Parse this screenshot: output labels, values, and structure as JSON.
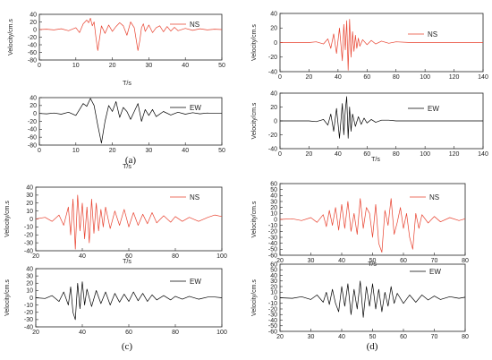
{
  "colors": {
    "ns": "#e8412e",
    "ew": "#000000",
    "axis": "#222222"
  },
  "chart_data": [
    {
      "type": "line",
      "group": "(a)",
      "caption": "(a)",
      "xlabel": "T/s",
      "ylabel": "Velocity/cm.s",
      "xlim": [
        0,
        50
      ],
      "xticks": [
        0,
        10,
        20,
        30,
        40,
        50
      ],
      "ylim": [
        -80,
        40
      ],
      "yticks": [
        -80,
        -60,
        -40,
        -20,
        0,
        20,
        40
      ],
      "series": [
        {
          "name": "NS",
          "color": "#e8412e",
          "x": [
            0,
            2,
            4,
            6,
            8,
            10,
            11,
            12,
            13,
            13.5,
            14,
            14.5,
            15,
            15.5,
            16,
            17,
            18,
            19,
            20,
            21,
            22,
            23,
            24,
            25,
            26,
            27,
            27.5,
            28,
            28.5,
            29,
            30,
            31,
            32,
            33,
            34,
            35,
            36,
            37,
            38,
            40,
            42,
            44,
            46,
            48,
            50
          ],
          "y": [
            0,
            1,
            -1,
            2,
            -3,
            5,
            -8,
            15,
            25,
            18,
            30,
            10,
            20,
            -20,
            -55,
            10,
            -10,
            12,
            -5,
            8,
            18,
            10,
            -15,
            20,
            5,
            -55,
            -30,
            5,
            15,
            -5,
            12,
            -8,
            5,
            10,
            -6,
            8,
            -4,
            6,
            -3,
            3,
            -2,
            2,
            -1,
            1,
            0
          ]
        }
      ]
    },
    {
      "type": "line",
      "group": "(a)",
      "xlabel": "T/s",
      "ylabel": "",
      "xlim": [
        0,
        50
      ],
      "xticks": [
        0,
        10,
        20,
        30,
        40,
        50
      ],
      "ylim": [
        -80,
        40
      ],
      "yticks": [
        -80,
        -60,
        -40,
        -20,
        0,
        20,
        40
      ],
      "series": [
        {
          "name": "EW",
          "color": "#000000",
          "x": [
            0,
            2,
            4,
            6,
            8,
            10,
            11,
            12,
            13,
            14,
            15,
            16,
            17,
            18,
            19,
            20,
            21,
            22,
            23,
            24,
            25,
            26,
            27,
            28,
            29,
            30,
            31,
            32,
            34,
            36,
            38,
            40,
            42,
            44,
            46,
            48,
            50
          ],
          "y": [
            0,
            -1,
            1,
            -2,
            3,
            -5,
            10,
            25,
            18,
            38,
            20,
            -30,
            -75,
            -20,
            20,
            5,
            30,
            -10,
            15,
            5,
            -15,
            5,
            25,
            -20,
            10,
            -5,
            10,
            -8,
            5,
            -4,
            3,
            -2,
            2,
            -1,
            1,
            0,
            0
          ]
        }
      ]
    },
    {
      "type": "line",
      "group": "(b)",
      "caption": "(b)",
      "xlabel": "",
      "ylabel": "Velocity/cm.s",
      "xlim": [
        0,
        140
      ],
      "xticks": [
        0,
        20,
        40,
        60,
        80,
        100,
        120,
        140
      ],
      "ylim": [
        -40,
        40
      ],
      "yticks": [
        -40,
        -20,
        0,
        20,
        40
      ],
      "series": [
        {
          "name": "NS",
          "color": "#e8412e",
          "x": [
            0,
            20,
            25,
            30,
            33,
            35,
            37,
            39,
            41,
            43,
            44,
            45,
            46,
            47,
            48,
            49,
            50,
            51,
            52,
            53,
            54,
            55,
            57,
            60,
            63,
            66,
            70,
            75,
            80,
            90,
            100,
            120,
            140
          ],
          "y": [
            0,
            0,
            1,
            -2,
            5,
            -8,
            12,
            -15,
            20,
            -25,
            25,
            -10,
            30,
            -38,
            32,
            -20,
            15,
            -12,
            10,
            -8,
            6,
            -5,
            4,
            -3,
            3,
            -2,
            2,
            -1,
            1,
            0,
            0,
            0,
            0
          ]
        }
      ]
    },
    {
      "type": "line",
      "group": "(b)",
      "xlabel": "T/s",
      "ylabel": "Velocity/cm.s",
      "xlim": [
        0,
        140
      ],
      "xticks": [
        0,
        20,
        40,
        60,
        80,
        100,
        120,
        140
      ],
      "ylim": [
        -40,
        40
      ],
      "yticks": [
        -40,
        -20,
        0,
        20,
        40
      ],
      "series": [
        {
          "name": "EW",
          "color": "#000000",
          "x": [
            0,
            20,
            25,
            30,
            33,
            35,
            37,
            39,
            41,
            43,
            44,
            45,
            46,
            47,
            48,
            49,
            50,
            52,
            54,
            56,
            58,
            60,
            63,
            66,
            70,
            75,
            80,
            90,
            100,
            120,
            140
          ],
          "y": [
            0,
            0,
            -1,
            2,
            -6,
            10,
            -15,
            18,
            -25,
            25,
            -20,
            15,
            35,
            -25,
            20,
            -15,
            10,
            -8,
            6,
            -5,
            4,
            -3,
            2,
            -2,
            1,
            1,
            0,
            0,
            0,
            0,
            0
          ]
        }
      ]
    },
    {
      "type": "line",
      "group": "(c)",
      "xlabel": "T/s",
      "ylabel": "Velocity/cm.s",
      "xlim": [
        20,
        100
      ],
      "xticks": [
        20,
        40,
        60,
        80,
        100
      ],
      "ylim": [
        -40,
        40
      ],
      "yticks": [
        -40,
        -30,
        -20,
        -10,
        0,
        10,
        20,
        30,
        40
      ],
      "series": [
        {
          "name": "NS",
          "color": "#e8412e",
          "x": [
            20,
            24,
            27,
            30,
            32,
            34,
            35,
            36,
            37,
            38,
            39,
            40,
            41,
            42,
            43,
            44,
            45,
            46,
            47,
            48,
            49,
            50,
            52,
            54,
            56,
            58,
            60,
            62,
            64,
            66,
            68,
            70,
            72,
            75,
            78,
            80,
            83,
            86,
            90,
            94,
            97,
            100
          ],
          "y": [
            0,
            2,
            -3,
            5,
            -8,
            15,
            -20,
            25,
            -38,
            30,
            -15,
            20,
            -25,
            15,
            -30,
            25,
            -18,
            20,
            -15,
            12,
            -10,
            15,
            -12,
            10,
            -8,
            12,
            -10,
            8,
            -8,
            6,
            -6,
            8,
            -5,
            4,
            -4,
            3,
            -3,
            2,
            -3,
            2,
            5,
            3
          ]
        }
      ]
    },
    {
      "type": "line",
      "group": "(c)",
      "caption": "(c)",
      "xlabel": "",
      "ylabel": "Velocity/cm.s",
      "xlim": [
        20,
        100
      ],
      "xticks": [
        20,
        40,
        60,
        80,
        100
      ],
      "ylim": [
        -40,
        40
      ],
      "yticks": [
        -40,
        -30,
        -20,
        -10,
        0,
        10,
        20,
        30,
        40
      ],
      "series": [
        {
          "name": "EW",
          "color": "#000000",
          "x": [
            20,
            24,
            27,
            30,
            32,
            34,
            35,
            36,
            37,
            38,
            39,
            40,
            41,
            42,
            44,
            46,
            48,
            50,
            52,
            54,
            56,
            58,
            60,
            62,
            64,
            66,
            68,
            70,
            72,
            75,
            78,
            80,
            83,
            86,
            90,
            94,
            97,
            100
          ],
          "y": [
            0,
            -1,
            3,
            -5,
            8,
            -10,
            15,
            -20,
            -30,
            20,
            -15,
            22,
            -10,
            12,
            -12,
            10,
            -8,
            8,
            -10,
            6,
            -6,
            5,
            -5,
            8,
            -4,
            6,
            -5,
            4,
            -3,
            3,
            -3,
            2,
            -2,
            2,
            -2,
            1,
            1,
            0
          ]
        }
      ]
    },
    {
      "type": "line",
      "group": "(d)",
      "xlabel": "T/s",
      "ylabel": "Velocity/cm.s",
      "xlim": [
        20,
        80
      ],
      "xticks": [
        20,
        30,
        40,
        50,
        60,
        70,
        80
      ],
      "ylim": [
        -60,
        60
      ],
      "yticks": [
        -60,
        -50,
        -40,
        -30,
        -20,
        -10,
        0,
        10,
        20,
        30,
        40,
        50,
        60
      ],
      "series": [
        {
          "name": "NS",
          "color": "#e8412e",
          "x": [
            20,
            24,
            27,
            30,
            32,
            34,
            35,
            36,
            37,
            38,
            39,
            40,
            41,
            42,
            43,
            44,
            45,
            46,
            47,
            48,
            49,
            50,
            51,
            52,
            53,
            54,
            55,
            56,
            57,
            58,
            59,
            60,
            61,
            62,
            63,
            64,
            65,
            66,
            68,
            70,
            72,
            75,
            78,
            80
          ],
          "y": [
            0,
            1,
            -2,
            3,
            -5,
            8,
            -12,
            15,
            -10,
            20,
            -18,
            25,
            -15,
            30,
            -20,
            10,
            -25,
            35,
            -15,
            20,
            10,
            -30,
            25,
            -40,
            -55,
            15,
            -10,
            35,
            -25,
            -5,
            20,
            -15,
            10,
            -30,
            -50,
            10,
            -15,
            8,
            -6,
            5,
            -4,
            3,
            -2,
            1
          ]
        }
      ]
    },
    {
      "type": "line",
      "group": "(d)",
      "caption": "(d)",
      "xlabel": "",
      "ylabel": "Velocity/cm.s",
      "xlim": [
        20,
        80
      ],
      "xticks": [
        20,
        30,
        40,
        50,
        60,
        70,
        80
      ],
      "ylim": [
        -60,
        60
      ],
      "yticks": [
        -60,
        -50,
        -40,
        -30,
        -20,
        -10,
        0,
        10,
        20,
        30,
        40,
        50,
        60
      ],
      "series": [
        {
          "name": "EW",
          "color": "#000000",
          "x": [
            20,
            24,
            27,
            30,
            32,
            34,
            35,
            36,
            37,
            38,
            39,
            40,
            41,
            42,
            43,
            44,
            45,
            46,
            47,
            48,
            49,
            50,
            51,
            52,
            53,
            54,
            55,
            56,
            57,
            58,
            60,
            62,
            64,
            66,
            68,
            70,
            72,
            75,
            78,
            80
          ],
          "y": [
            0,
            -1,
            2,
            -3,
            5,
            -8,
            10,
            -12,
            15,
            -10,
            -25,
            20,
            -15,
            25,
            -30,
            15,
            -20,
            30,
            -35,
            20,
            -15,
            25,
            -20,
            15,
            -25,
            10,
            -15,
            20,
            -10,
            8,
            -10,
            5,
            -8,
            5,
            -4,
            3,
            -3,
            2,
            -1,
            1
          ]
        }
      ]
    }
  ]
}
